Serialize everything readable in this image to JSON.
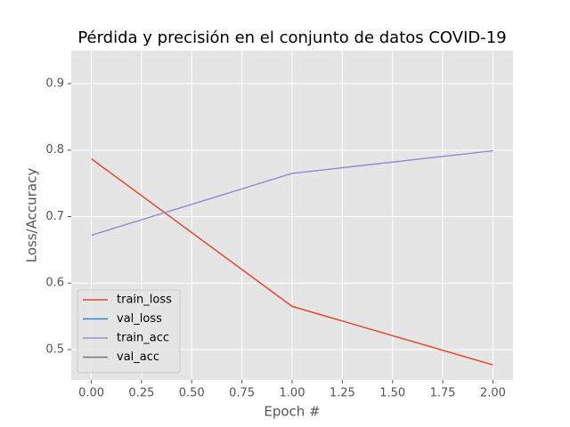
{
  "chart_data": {
    "type": "line",
    "title": "Pérdida y precisión en el conjunto de datos COVID-19",
    "x_label": "Epoch #",
    "y_label": "Loss/Accuracy",
    "x": [
      0,
      1,
      2
    ],
    "series": [
      {
        "name": "train_loss",
        "color": "#E24A33",
        "values": [
          0.787,
          0.565,
          0.477
        ]
      },
      {
        "name": "val_loss",
        "color": "#348ABD",
        "values": [
          null,
          null,
          null
        ]
      },
      {
        "name": "train_acc",
        "color": "#988ED5",
        "values": [
          0.672,
          0.765,
          0.799
        ]
      },
      {
        "name": "val_acc",
        "color": "#777777",
        "values": [
          null,
          null,
          null
        ]
      }
    ],
    "xlim": [
      -0.1,
      2.1
    ],
    "xticks": [
      {
        "value": 0,
        "label": "0.00"
      },
      {
        "value": 0.25,
        "label": "0.25"
      },
      {
        "value": 0.5,
        "label": "0.50"
      },
      {
        "value": 0.75,
        "label": "0.75"
      },
      {
        "value": 1,
        "label": "1.00"
      },
      {
        "value": 1.25,
        "label": "1.25"
      },
      {
        "value": 1.5,
        "label": "1.50"
      },
      {
        "value": 1.75,
        "label": "1.75"
      },
      {
        "value": 2,
        "label": "2.00"
      }
    ],
    "ylim": [
      0.4545,
      0.9495
    ],
    "yticks": [
      0.5,
      0.6,
      0.7,
      0.8,
      0.9
    ],
    "grid": true,
    "legend": "lower left"
  }
}
